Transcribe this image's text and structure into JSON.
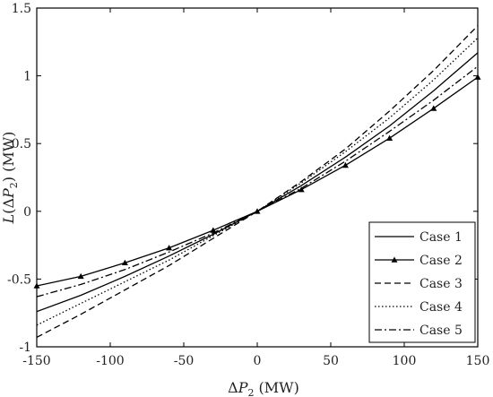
{
  "chart_data": {
    "type": "line",
    "title": "",
    "xlabel": {
      "prefix": "Δ",
      "var": "P",
      "sub": "2",
      "suffix": " (MW)"
    },
    "ylabel": {
      "var": "L",
      "open": "(Δ",
      "inner_var": "P",
      "sub": "2",
      "suffix": ") (MW)"
    },
    "xlim": [
      -150,
      150
    ],
    "ylim": [
      -1,
      1.5
    ],
    "xticks": [
      -150,
      -100,
      -50,
      0,
      50,
      100,
      150
    ],
    "xtick_labels": [
      "-150",
      "-100",
      "-50",
      "0",
      "50",
      "100",
      "150"
    ],
    "yticks": [
      -1,
      -0.5,
      0,
      0.5,
      1,
      1.5
    ],
    "ytick_labels": [
      "-1",
      "-0.5",
      "0",
      "0.5",
      "1",
      "1.5"
    ],
    "grid": false,
    "legend_position": "bottom-right",
    "x": [
      -150,
      -120,
      -90,
      -60,
      -30,
      0,
      30,
      60,
      90,
      120,
      150
    ],
    "series": [
      {
        "name": "Case 1",
        "style": "solid",
        "marker": "none",
        "values": [
          -0.74,
          -0.62,
          -0.48,
          -0.33,
          -0.17,
          0,
          0.19,
          0.4,
          0.63,
          0.89,
          1.17
        ]
      },
      {
        "name": "Case 2",
        "style": "solid",
        "marker": "triangle",
        "values": [
          -0.55,
          -0.48,
          -0.38,
          -0.27,
          -0.14,
          0,
          0.16,
          0.34,
          0.54,
          0.76,
          0.99
        ]
      },
      {
        "name": "Case 3",
        "style": "dashed",
        "marker": "none",
        "values": [
          -0.93,
          -0.76,
          -0.58,
          -0.4,
          -0.2,
          0,
          0.22,
          0.46,
          0.74,
          1.04,
          1.37
        ]
      },
      {
        "name": "Case 4",
        "style": "dotted",
        "marker": "none",
        "values": [
          -0.84,
          -0.68,
          -0.52,
          -0.36,
          -0.18,
          0,
          0.21,
          0.44,
          0.69,
          0.97,
          1.28
        ]
      },
      {
        "name": "Case 5",
        "style": "dashdot",
        "marker": "none",
        "values": [
          -0.63,
          -0.54,
          -0.43,
          -0.3,
          -0.16,
          0,
          0.17,
          0.37,
          0.59,
          0.82,
          1.07
        ]
      }
    ]
  }
}
